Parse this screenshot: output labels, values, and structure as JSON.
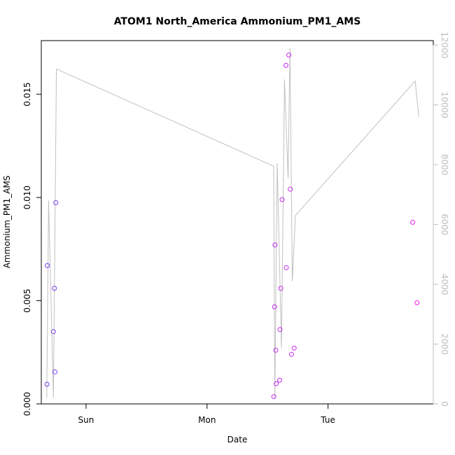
{
  "chart_data": {
    "type": "scatter",
    "title": "ATOM1 North_America Ammonium_PM1_AMS",
    "xlabel": "Date",
    "ylabel": "Ammonium_PM1_AMS",
    "x_ticks": [
      {
        "label": "Sun",
        "day": 0
      },
      {
        "label": "Mon",
        "day": 1
      },
      {
        "label": "Tue",
        "day": 2
      }
    ],
    "xlim_day": [
      -0.37,
      2.87
    ],
    "ylim": [
      0,
      0.0176
    ],
    "y_ticks": [
      "0.000",
      "0.005",
      "0.010",
      "0.015"
    ],
    "y_tick_values": [
      0,
      0.005,
      0.01,
      0.015
    ],
    "y2lim": [
      0,
      12150
    ],
    "y2_ticks": [
      "0",
      "2000",
      "4000",
      "6000",
      "8000",
      "10000",
      "12000"
    ],
    "y2_tick_values": [
      0,
      2000,
      4000,
      6000,
      8000,
      10000,
      12000
    ],
    "grid": false,
    "colors": {
      "point_low": "#7a3ff0",
      "point_high": "#ee20ee",
      "altitude_line": "#c0c0c0",
      "axis": "#000000",
      "right_axis": "#bdbdbd"
    },
    "series": [
      {
        "type": "scatter",
        "axis": "left",
        "points": [
          {
            "day": -0.323,
            "y": 0.00095
          },
          {
            "day": -0.32,
            "y": 0.0067
          },
          {
            "day": -0.27,
            "y": 0.0035
          },
          {
            "day": -0.262,
            "y": 0.0056
          },
          {
            "day": -0.257,
            "y": 0.00155
          },
          {
            "day": -0.25,
            "y": 0.00975
          },
          {
            "day": 1.552,
            "y": 0.00035
          },
          {
            "day": 1.558,
            "y": 0.0047
          },
          {
            "day": 1.562,
            "y": 0.0077
          },
          {
            "day": 1.568,
            "y": 0.0026
          },
          {
            "day": 1.572,
            "y": 0.00098
          },
          {
            "day": 1.6,
            "y": 0.00115
          },
          {
            "day": 1.603,
            "y": 0.0036
          },
          {
            "day": 1.61,
            "y": 0.0056
          },
          {
            "day": 1.62,
            "y": 0.0099
          },
          {
            "day": 1.652,
            "y": 0.0164
          },
          {
            "day": 1.655,
            "y": 0.0066
          },
          {
            "day": 1.676,
            "y": 0.0169
          },
          {
            "day": 1.688,
            "y": 0.0104
          },
          {
            "day": 1.698,
            "y": 0.0024
          },
          {
            "day": 1.72,
            "y": 0.0027
          },
          {
            "day": 2.7,
            "y": 0.0088
          },
          {
            "day": 2.736,
            "y": 0.0049
          }
        ]
      },
      {
        "type": "line",
        "axis": "right",
        "points": [
          {
            "day": -0.325,
            "y2": 200
          },
          {
            "day": -0.31,
            "y2": 6800
          },
          {
            "day": -0.27,
            "y2": 200
          },
          {
            "day": -0.245,
            "y2": 11200
          },
          {
            "day": 1.55,
            "y2": 7950
          },
          {
            "day": 1.56,
            "y2": 200
          },
          {
            "day": 1.58,
            "y2": 8050
          },
          {
            "day": 1.615,
            "y2": 1850
          },
          {
            "day": 1.64,
            "y2": 10850
          },
          {
            "day": 1.67,
            "y2": 7550
          },
          {
            "day": 1.685,
            "y2": 11900
          },
          {
            "day": 1.705,
            "y2": 4100
          },
          {
            "day": 1.73,
            "y2": 6300
          },
          {
            "day": 2.72,
            "y2": 10800
          },
          {
            "day": 2.75,
            "y2": 9600
          }
        ]
      }
    ]
  }
}
